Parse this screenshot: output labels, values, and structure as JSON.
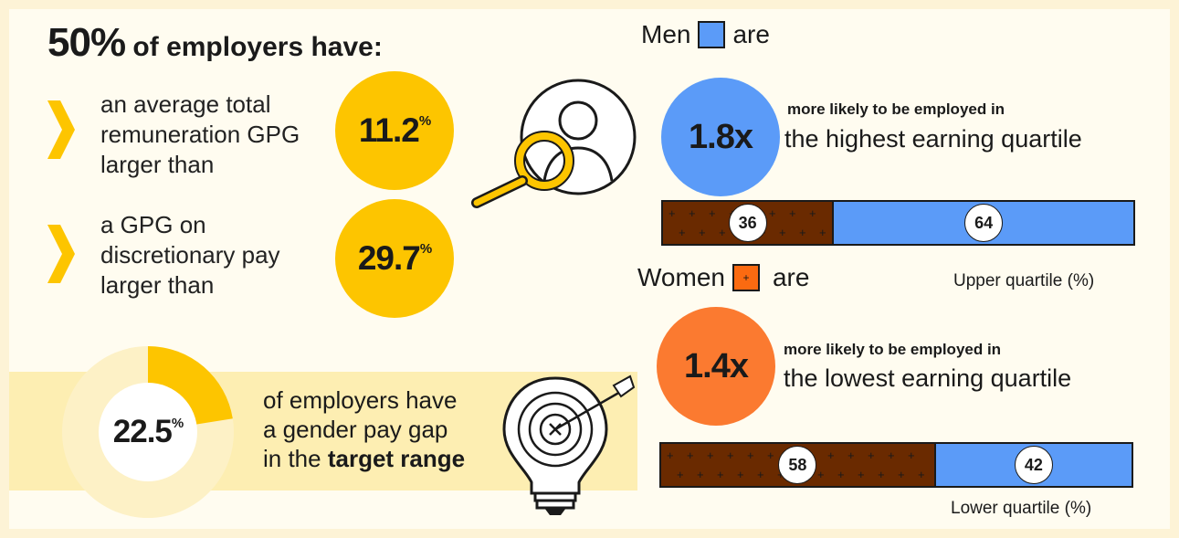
{
  "headline": {
    "percent": "50%",
    "text": "of employers have:"
  },
  "stats": [
    {
      "lines": [
        "an average total",
        "remuneration GPG",
        "larger than"
      ],
      "value": "11.2",
      "unit": "%"
    },
    {
      "lines": [
        "a GPG on",
        "discretionary pay",
        "larger than"
      ],
      "value": "29.7",
      "unit": "%"
    }
  ],
  "target": {
    "value": "22.5",
    "unit": "%",
    "fraction": 0.225,
    "line1": "of employers have",
    "line2": "a gender pay gap",
    "line3_prefix": "in the",
    "line3_bold": "target range"
  },
  "men": {
    "legend_left": "Men",
    "legend_right": "are",
    "multiplier": "1.8x",
    "likely": "more likely to be employed in",
    "quartile": "the highest earning quartile"
  },
  "upper_bar": {
    "women": 36,
    "men": 64,
    "caption": "Upper quartile (%)"
  },
  "women": {
    "legend_left": "Women",
    "legend_right": "are",
    "swatch_mark": "+",
    "multiplier": "1.4x",
    "likely": "more likely to be employed in",
    "quartile": "the lowest earning quartile"
  },
  "lower_bar": {
    "women": 58,
    "men": 42,
    "caption": "Lower quartile (%)"
  },
  "colors": {
    "yellow": "#fdc500",
    "blue": "#5b9bf8",
    "orange": "#fb6a11",
    "band": "#fdeeb2",
    "bg": "#fffcf0"
  }
}
